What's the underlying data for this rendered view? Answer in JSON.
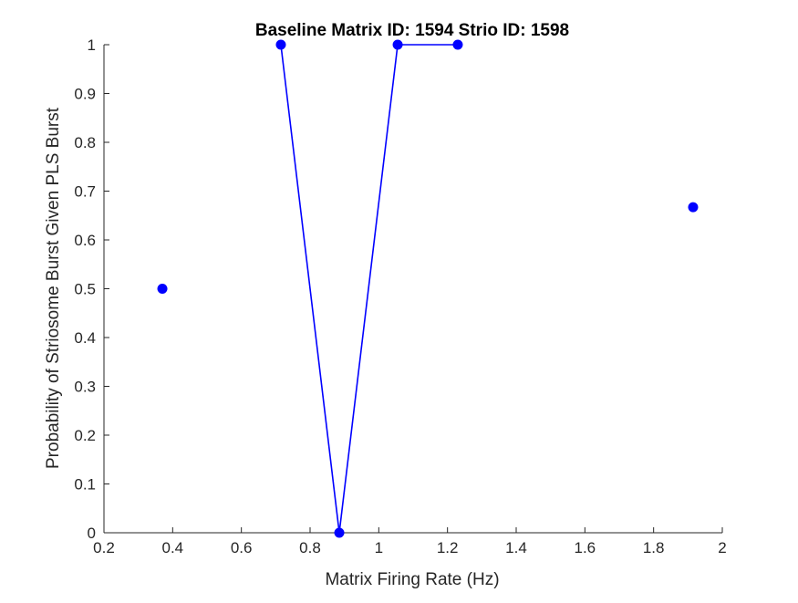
{
  "chart_data": {
    "type": "scatter",
    "title": "Baseline Matrix ID: 1594 Strio ID: 1598",
    "xlabel": "Matrix Firing Rate (Hz)",
    "ylabel": "Probability of Striosome Burst Given PLS Burst",
    "xlim": [
      0.2,
      2
    ],
    "ylim": [
      0,
      1
    ],
    "x_ticks": [
      "0.2",
      "0.4",
      "0.6",
      "0.8",
      "1",
      "1.2",
      "1.4",
      "1.6",
      "1.8",
      "2"
    ],
    "y_ticks": [
      "0",
      "0.1",
      "0.2",
      "0.3",
      "0.4",
      "0.5",
      "0.6",
      "0.7",
      "0.8",
      "0.9",
      "1"
    ],
    "grid": false,
    "legend": "none",
    "series": [
      {
        "color": "#0000ff",
        "marker": "filled-circle",
        "points": [
          {
            "x": 0.37,
            "y": 0.5
          },
          {
            "x": 0.715,
            "y": 1.0
          },
          {
            "x": 0.885,
            "y": 0.0
          },
          {
            "x": 1.055,
            "y": 1.0
          },
          {
            "x": 1.23,
            "y": 1.0
          },
          {
            "x": 1.915,
            "y": 0.667
          }
        ],
        "connected_segments": [
          [
            1,
            2
          ],
          [
            2,
            3
          ],
          [
            3,
            4
          ]
        ]
      }
    ],
    "colors": {
      "axis": "#262626",
      "series": "#0000ff",
      "background": "#ffffff"
    }
  }
}
